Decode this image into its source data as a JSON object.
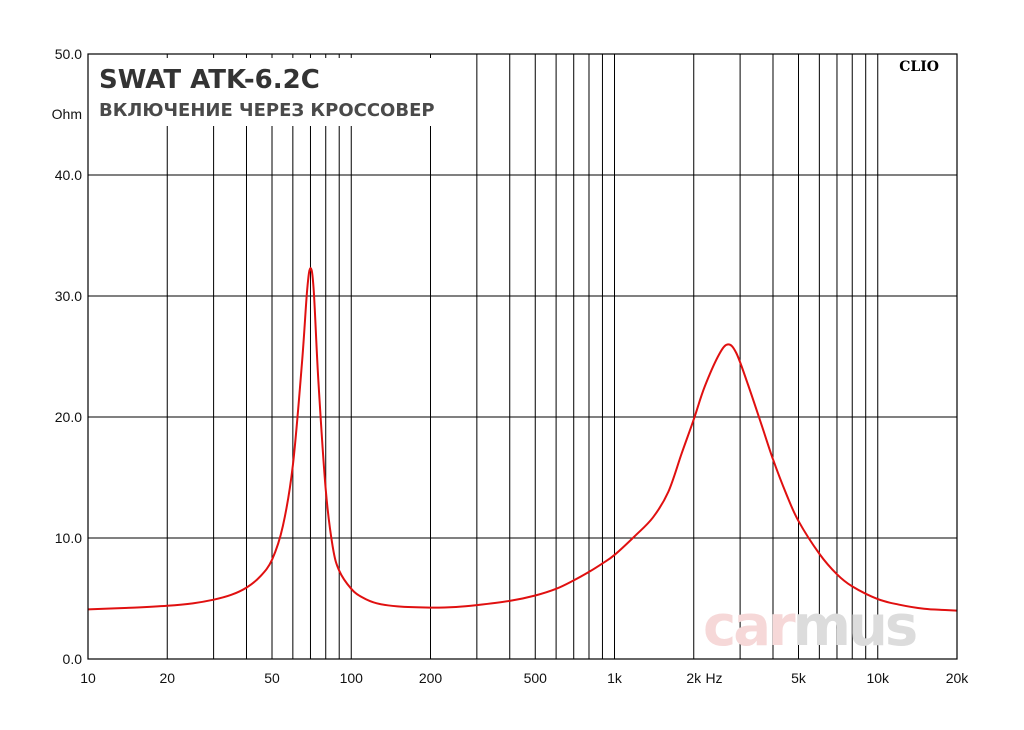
{
  "chart_data": {
    "type": "line",
    "title": "SWAT ATK-6.2C",
    "subtitle": "ВКЛЮЧЕНИЕ ЧЕРЕЗ КРОССОВЕР",
    "ylabel": "Ohm",
    "xlabel": "Hz",
    "x_scale": "log",
    "xlim": [
      10,
      20000
    ],
    "ylim": [
      0,
      50
    ],
    "grid": true,
    "y_ticks": [
      "0.0",
      "10.0",
      "20.0",
      "30.0",
      "40.0",
      "50.0"
    ],
    "x_tick_labels": [
      {
        "value": 10,
        "label": "10"
      },
      {
        "value": 20,
        "label": "20"
      },
      {
        "value": 50,
        "label": "50"
      },
      {
        "value": 100,
        "label": "100"
      },
      {
        "value": 200,
        "label": "200"
      },
      {
        "value": 500,
        "label": "500"
      },
      {
        "value": 1000,
        "label": "1k"
      },
      {
        "value": 2000,
        "label": "2k"
      },
      {
        "value": 5000,
        "label": "5k"
      },
      {
        "value": 10000,
        "label": "10k"
      },
      {
        "value": 20000,
        "label": "20k"
      }
    ],
    "series": [
      {
        "color": "#e01010",
        "points": [
          [
            10,
            4.1
          ],
          [
            15,
            4.25
          ],
          [
            20,
            4.4
          ],
          [
            25,
            4.6
          ],
          [
            30,
            4.9
          ],
          [
            35,
            5.3
          ],
          [
            40,
            5.9
          ],
          [
            45,
            6.8
          ],
          [
            50,
            8.2
          ],
          [
            55,
            11.0
          ],
          [
            60,
            16.0
          ],
          [
            65,
            24.5
          ],
          [
            68,
            30.5
          ],
          [
            70,
            32.3
          ],
          [
            72,
            30.5
          ],
          [
            75,
            23.0
          ],
          [
            80,
            14.0
          ],
          [
            85,
            9.3
          ],
          [
            90,
            7.3
          ],
          [
            100,
            5.8
          ],
          [
            110,
            5.1
          ],
          [
            125,
            4.6
          ],
          [
            150,
            4.35
          ],
          [
            200,
            4.25
          ],
          [
            250,
            4.3
          ],
          [
            300,
            4.45
          ],
          [
            400,
            4.8
          ],
          [
            500,
            5.25
          ],
          [
            600,
            5.8
          ],
          [
            700,
            6.5
          ],
          [
            800,
            7.2
          ],
          [
            900,
            7.9
          ],
          [
            1000,
            8.6
          ],
          [
            1200,
            10.2
          ],
          [
            1400,
            11.7
          ],
          [
            1600,
            13.8
          ],
          [
            1800,
            17.0
          ],
          [
            2000,
            19.8
          ],
          [
            2200,
            22.5
          ],
          [
            2500,
            25.2
          ],
          [
            2700,
            26.0
          ],
          [
            2900,
            25.3
          ],
          [
            3200,
            22.8
          ],
          [
            3600,
            19.5
          ],
          [
            4000,
            16.5
          ],
          [
            4500,
            13.6
          ],
          [
            5000,
            11.4
          ],
          [
            6000,
            8.7
          ],
          [
            7000,
            7.0
          ],
          [
            8000,
            6.0
          ],
          [
            10000,
            4.95
          ],
          [
            12000,
            4.5
          ],
          [
            15000,
            4.15
          ],
          [
            18000,
            4.05
          ],
          [
            20000,
            4.0
          ]
        ]
      }
    ]
  },
  "brand_label": "CLIO",
  "watermark": {
    "part1": "car",
    "part2": "mus",
    "color1": "#f6d8d8",
    "color2": "#dcdcdc"
  }
}
